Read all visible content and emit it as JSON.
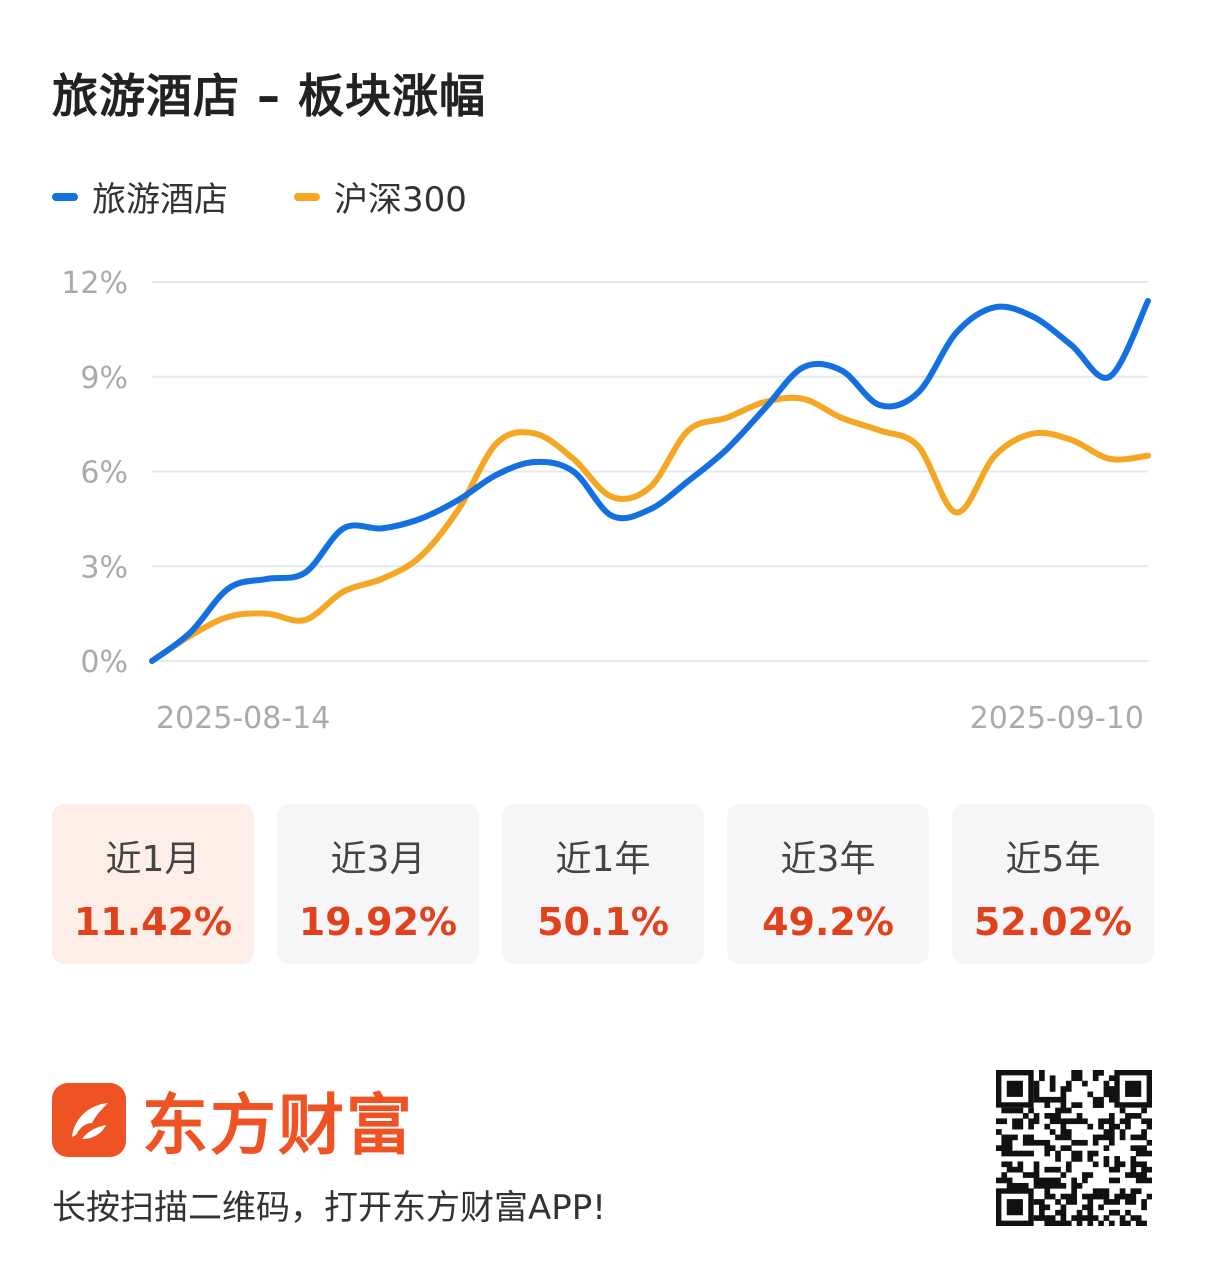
{
  "title": "旅游酒店 – 板块涨幅",
  "legend": [
    {
      "name": "旅游酒店",
      "color": "#1470e0"
    },
    {
      "name": "沪深300",
      "color": "#f5a623"
    }
  ],
  "chart_data": {
    "type": "line",
    "yticks": [
      "0%",
      "3%",
      "6%",
      "9%",
      "12%"
    ],
    "ylim": [
      0,
      12
    ],
    "x_labels": [
      "2025-08-14",
      "2025-09-10"
    ],
    "grid": true,
    "legend_position": "top-left",
    "series": [
      {
        "name": "旅游酒店",
        "color": "#1470e0",
        "values": [
          0.0,
          0.9,
          2.3,
          2.6,
          2.8,
          4.2,
          4.2,
          4.5,
          5.1,
          5.9,
          6.3,
          6.0,
          4.6,
          4.8,
          5.7,
          6.7,
          8.0,
          9.3,
          9.2,
          8.1,
          8.5,
          10.4,
          11.2,
          10.9,
          10.0,
          9.0,
          11.4
        ]
      },
      {
        "name": "沪深300",
        "color": "#f5a623",
        "values": [
          0.0,
          0.8,
          1.4,
          1.5,
          1.3,
          2.2,
          2.6,
          3.3,
          4.8,
          6.9,
          7.2,
          6.4,
          5.2,
          5.5,
          7.3,
          7.7,
          8.2,
          8.3,
          7.7,
          7.3,
          6.8,
          4.7,
          6.5,
          7.2,
          7.0,
          6.4,
          6.5
        ]
      }
    ]
  },
  "tiles": [
    {
      "label": "近1月",
      "value": "11.42%"
    },
    {
      "label": "近3月",
      "value": "19.92%"
    },
    {
      "label": "近1年",
      "value": "50.1%"
    },
    {
      "label": "近3年",
      "value": "49.2%"
    },
    {
      "label": "近5年",
      "value": "52.02%"
    }
  ],
  "brand": {
    "name": "东方财富",
    "color": "#f05323",
    "logo_icon": "eastmoney-logo-icon"
  },
  "footer_text": "长按扫描二维码，打开东方财富APP!",
  "qr_icon": "qr-code-icon"
}
